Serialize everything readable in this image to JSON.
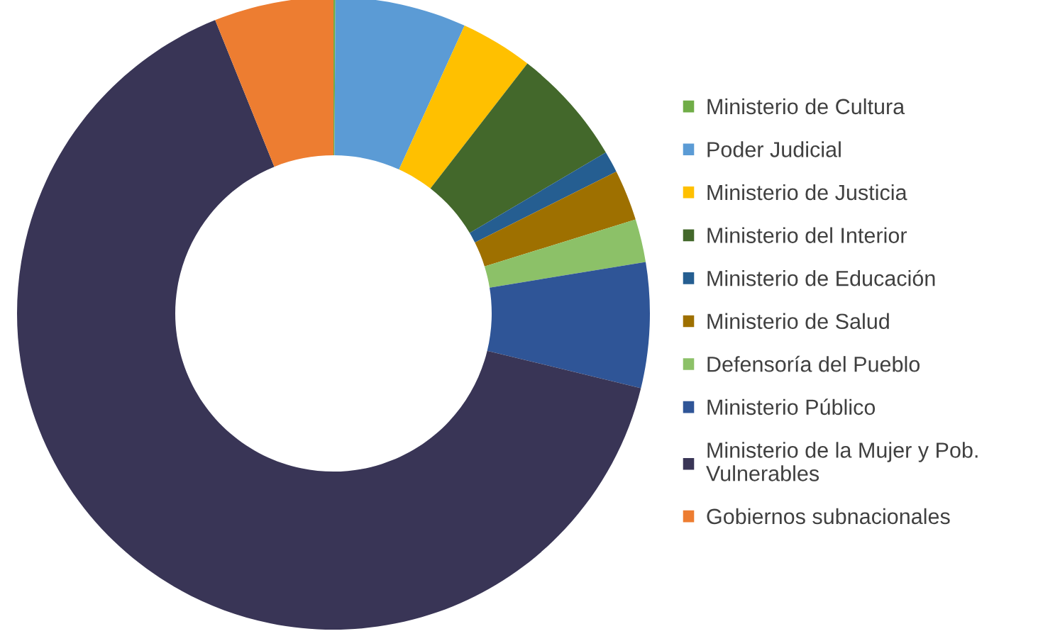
{
  "chart_data": {
    "type": "donut",
    "categories": [
      "Ministerio de Cultura",
      "Poder Judicial",
      "Ministerio de Justicia",
      "Ministerio del Interior",
      "Ministerio de Educación",
      "Ministerio de Salud",
      "Defensoría del Pueblo",
      "Ministerio Público",
      "Ministerio de la Mujer y Pob. Vulnerables",
      "Gobiernos subnacionales"
    ],
    "values": [
      0.1,
      6.7,
      3.7,
      6.0,
      1.1,
      2.6,
      2.2,
      6.4,
      65.1,
      6.1
    ],
    "colors": [
      "#70ad47",
      "#5b9bd5",
      "#ffc000",
      "#43682b",
      "#255e91",
      "#9e7000",
      "#8cc168",
      "#2f5597",
      "#393556",
      "#ed7d31"
    ],
    "legend": "right"
  }
}
